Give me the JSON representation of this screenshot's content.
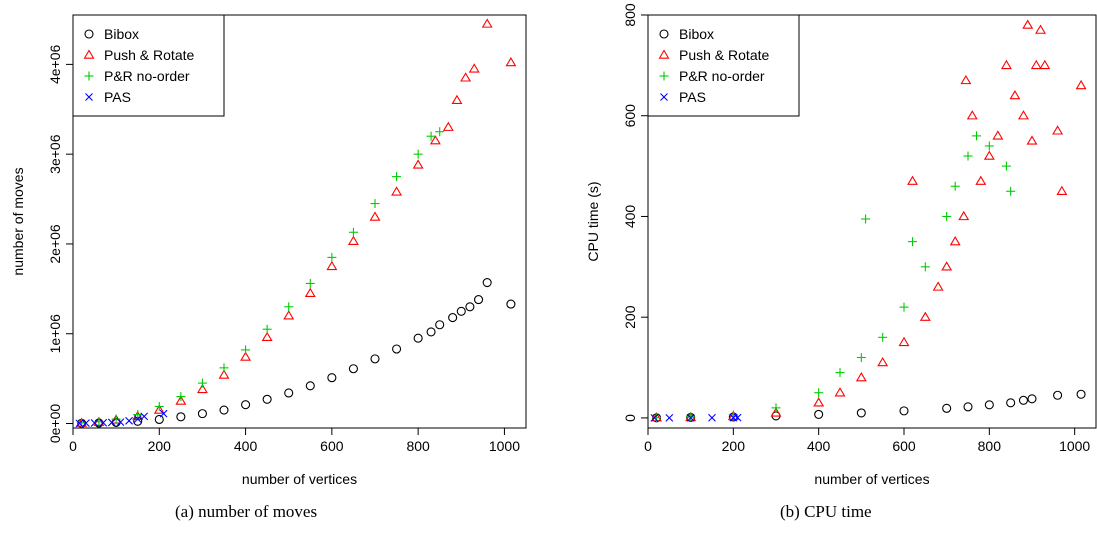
{
  "chart_data": [
    {
      "type": "scatter",
      "caption": "(a)  number of moves",
      "xlabel": "number of vertices",
      "ylabel": "number of moves",
      "xlim": [
        0,
        1050
      ],
      "ylim": [
        -50000,
        4550000
      ],
      "xticks": [
        0,
        200,
        400,
        600,
        800,
        1000
      ],
      "xtick_labels": [
        "0",
        "200",
        "400",
        "600",
        "800",
        "1000"
      ],
      "yticks": [
        0,
        1000000,
        2000000,
        3000000,
        4000000
      ],
      "ytick_labels": [
        "0e+00",
        "1e+06",
        "2e+06",
        "3e+06",
        "4e+06"
      ],
      "grid": false,
      "legend_position": "top-left",
      "series": [
        {
          "name": "Bibox",
          "marker": "circle",
          "color": "#000000",
          "points": [
            [
              20,
              3000
            ],
            [
              60,
              6000
            ],
            [
              100,
              12000
            ],
            [
              150,
              25000
            ],
            [
              200,
              45000
            ],
            [
              250,
              75000
            ],
            [
              300,
              110000
            ],
            [
              350,
              150000
            ],
            [
              400,
              210000
            ],
            [
              450,
              270000
            ],
            [
              500,
              340000
            ],
            [
              550,
              420000
            ],
            [
              600,
              510000
            ],
            [
              650,
              610000
            ],
            [
              700,
              720000
            ],
            [
              750,
              830000
            ],
            [
              800,
              950000
            ],
            [
              830,
              1020000
            ],
            [
              850,
              1100000
            ],
            [
              880,
              1180000
            ],
            [
              900,
              1250000
            ],
            [
              920,
              1300000
            ],
            [
              940,
              1380000
            ],
            [
              960,
              1570000
            ],
            [
              1015,
              1330000
            ]
          ]
        },
        {
          "name": "Push & Rotate",
          "marker": "triangle",
          "color": "#ff0000",
          "points": [
            [
              20,
              5000
            ],
            [
              60,
              15000
            ],
            [
              100,
              40000
            ],
            [
              150,
              80000
            ],
            [
              200,
              150000
            ],
            [
              250,
              250000
            ],
            [
              300,
              380000
            ],
            [
              350,
              540000
            ],
            [
              400,
              740000
            ],
            [
              450,
              960000
            ],
            [
              500,
              1200000
            ],
            [
              550,
              1450000
            ],
            [
              600,
              1750000
            ],
            [
              650,
              2030000
            ],
            [
              700,
              2300000
            ],
            [
              750,
              2580000
            ],
            [
              800,
              2880000
            ],
            [
              840,
              3150000
            ],
            [
              870,
              3300000
            ],
            [
              890,
              3600000
            ],
            [
              910,
              3850000
            ],
            [
              930,
              3950000
            ],
            [
              960,
              4450000
            ],
            [
              1015,
              4020000
            ]
          ]
        },
        {
          "name": "P&R no-order",
          "marker": "plus",
          "color": "#00cc00",
          "points": [
            [
              20,
              6000
            ],
            [
              60,
              20000
            ],
            [
              100,
              50000
            ],
            [
              150,
              100000
            ],
            [
              200,
              190000
            ],
            [
              250,
              300000
            ],
            [
              300,
              450000
            ],
            [
              350,
              620000
            ],
            [
              400,
              820000
            ],
            [
              450,
              1050000
            ],
            [
              500,
              1300000
            ],
            [
              550,
              1560000
            ],
            [
              600,
              1850000
            ],
            [
              650,
              2130000
            ],
            [
              700,
              2450000
            ],
            [
              750,
              2750000
            ],
            [
              800,
              3000000
            ],
            [
              830,
              3200000
            ],
            [
              850,
              3250000
            ]
          ]
        },
        {
          "name": "PAS",
          "marker": "x",
          "color": "#0000ff",
          "points": [
            [
              15,
              2000
            ],
            [
              30,
              4000
            ],
            [
              50,
              6000
            ],
            [
              70,
              8000
            ],
            [
              90,
              12000
            ],
            [
              110,
              15000
            ],
            [
              130,
              30000
            ],
            [
              150,
              50000
            ],
            [
              165,
              80000
            ],
            [
              210,
              110000
            ]
          ]
        }
      ]
    },
    {
      "type": "scatter",
      "caption": "(b)  CPU time",
      "xlabel": "number of vertices",
      "ylabel": "CPU time (s)",
      "xlim": [
        0,
        1050
      ],
      "ylim": [
        -20,
        800
      ],
      "xticks": [
        0,
        200,
        400,
        600,
        800,
        1000
      ],
      "xtick_labels": [
        "0",
        "200",
        "400",
        "600",
        "800",
        "1000"
      ],
      "yticks": [
        0,
        200,
        400,
        600,
        800
      ],
      "ytick_labels": [
        "0",
        "200",
        "400",
        "600",
        "800"
      ],
      "grid": false,
      "legend_position": "top-left",
      "series": [
        {
          "name": "Bibox",
          "marker": "circle",
          "color": "#000000",
          "points": [
            [
              20,
              0.2
            ],
            [
              100,
              1
            ],
            [
              200,
              2
            ],
            [
              300,
              4
            ],
            [
              400,
              7
            ],
            [
              500,
              10
            ],
            [
              600,
              14
            ],
            [
              700,
              19
            ],
            [
              750,
              22
            ],
            [
              800,
              26
            ],
            [
              850,
              30
            ],
            [
              880,
              35
            ],
            [
              900,
              38
            ],
            [
              960,
              45
            ],
            [
              1015,
              47
            ]
          ]
        },
        {
          "name": "Push & Rotate",
          "marker": "triangle",
          "color": "#ff0000",
          "points": [
            [
              20,
              0.5
            ],
            [
              100,
              1
            ],
            [
              200,
              3
            ],
            [
              300,
              10
            ],
            [
              400,
              30
            ],
            [
              450,
              50
            ],
            [
              500,
              80
            ],
            [
              550,
              110
            ],
            [
              600,
              150
            ],
            [
              620,
              470
            ],
            [
              650,
              200
            ],
            [
              680,
              260
            ],
            [
              700,
              300
            ],
            [
              720,
              350
            ],
            [
              740,
              400
            ],
            [
              745,
              670
            ],
            [
              760,
              600
            ],
            [
              780,
              470
            ],
            [
              800,
              520
            ],
            [
              820,
              560
            ],
            [
              840,
              700
            ],
            [
              860,
              640
            ],
            [
              880,
              600
            ],
            [
              890,
              780
            ],
            [
              900,
              550
            ],
            [
              910,
              700
            ],
            [
              920,
              770
            ],
            [
              930,
              700
            ],
            [
              960,
              570
            ],
            [
              970,
              450
            ],
            [
              1015,
              660
            ]
          ]
        },
        {
          "name": "P&R no-order",
          "marker": "plus",
          "color": "#00cc00",
          "points": [
            [
              20,
              0.5
            ],
            [
              100,
              2
            ],
            [
              200,
              6
            ],
            [
              300,
              20
            ],
            [
              400,
              50
            ],
            [
              450,
              90
            ],
            [
              500,
              120
            ],
            [
              510,
              395
            ],
            [
              550,
              160
            ],
            [
              600,
              220
            ],
            [
              620,
              350
            ],
            [
              650,
              300
            ],
            [
              700,
              400
            ],
            [
              720,
              460
            ],
            [
              750,
              520
            ],
            [
              770,
              560
            ],
            [
              800,
              540
            ],
            [
              840,
              500
            ],
            [
              850,
              450
            ]
          ]
        },
        {
          "name": "PAS",
          "marker": "x",
          "color": "#0000ff",
          "points": [
            [
              15,
              0.1
            ],
            [
              50,
              0.1
            ],
            [
              100,
              0.2
            ],
            [
              150,
              0.3
            ],
            [
              200,
              0.5
            ],
            [
              210,
              0.6
            ]
          ]
        }
      ]
    }
  ]
}
